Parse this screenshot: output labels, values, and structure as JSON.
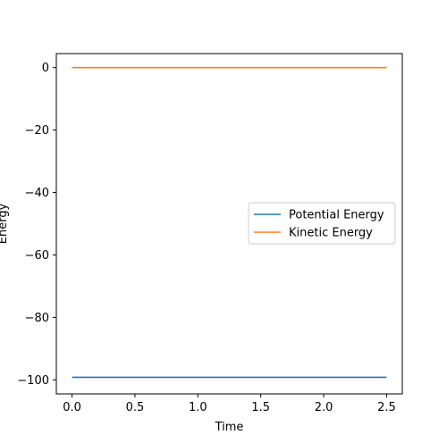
{
  "chart_data": {
    "type": "line",
    "title": "",
    "xlabel": "Time",
    "ylabel": "Energy",
    "xlim": [
      -0.125,
      2.625
    ],
    "ylim": [
      -104.5,
      4.5
    ],
    "xticks": [
      0.0,
      0.5,
      1.0,
      1.5,
      2.0,
      2.5
    ],
    "xtick_labels": [
      "0.0",
      "0.5",
      "1.0",
      "1.5",
      "2.0",
      "2.5"
    ],
    "yticks": [
      0,
      -20,
      -40,
      -60,
      -80,
      -100
    ],
    "ytick_labels": [
      "0",
      "−20",
      "−40",
      "−60",
      "−80",
      "−100"
    ],
    "grid": false,
    "legend_position": "center-right",
    "x": [
      0.0,
      0.25,
      0.5,
      0.75,
      1.0,
      1.25,
      1.5,
      1.75,
      2.0,
      2.25,
      2.5
    ],
    "series": [
      {
        "name": "Potential Energy",
        "color": "#1f77b4",
        "values": [
          -99.2,
          -99.2,
          -99.2,
          -99.2,
          -99.2,
          -99.2,
          -99.2,
          -99.2,
          -99.2,
          -99.2,
          -99.2
        ]
      },
      {
        "name": "Kinetic Energy",
        "color": "#ff7f0e",
        "values": [
          0,
          0,
          0,
          0,
          0,
          0,
          0,
          0,
          0,
          0,
          0
        ]
      }
    ]
  }
}
